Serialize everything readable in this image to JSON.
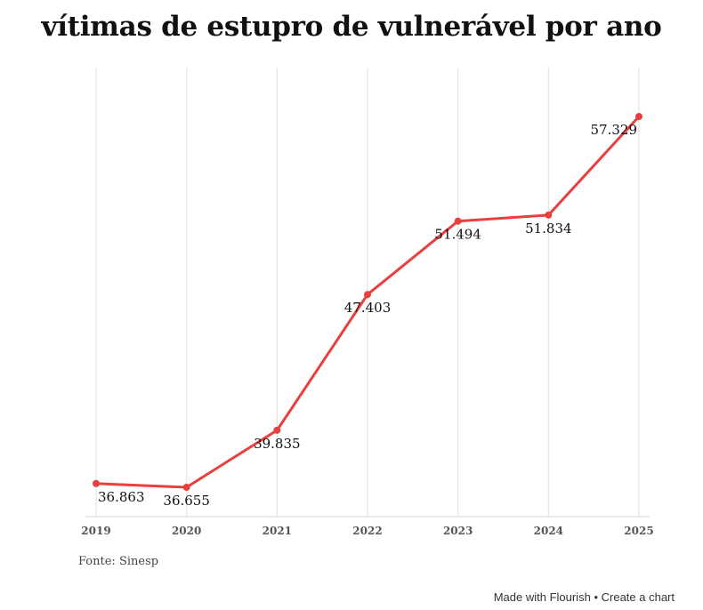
{
  "chart_data": {
    "type": "line",
    "title": "vítimas de estupro de vulnerável por ano",
    "xlabel": "",
    "ylabel": "",
    "categories": [
      "2019",
      "2020",
      "2021",
      "2022",
      "2023",
      "2024",
      "2025"
    ],
    "series": [
      {
        "name": "vítimas de estupro de vulnerável",
        "values": [
          36863,
          36655,
          39835,
          47403,
          51494,
          51834,
          57329
        ],
        "labels": [
          "36.863",
          "36.655",
          "39.835",
          "47.403",
          "51.494",
          "51.834",
          "57.329"
        ],
        "color": "#e8403f"
      }
    ],
    "ylim": [
      36000,
      57500
    ],
    "grid": "vertical"
  },
  "source": "Fonte: Sinesp",
  "credit": {
    "made_with": "Made with Flourish",
    "separator": "•",
    "create": "Create a chart"
  }
}
